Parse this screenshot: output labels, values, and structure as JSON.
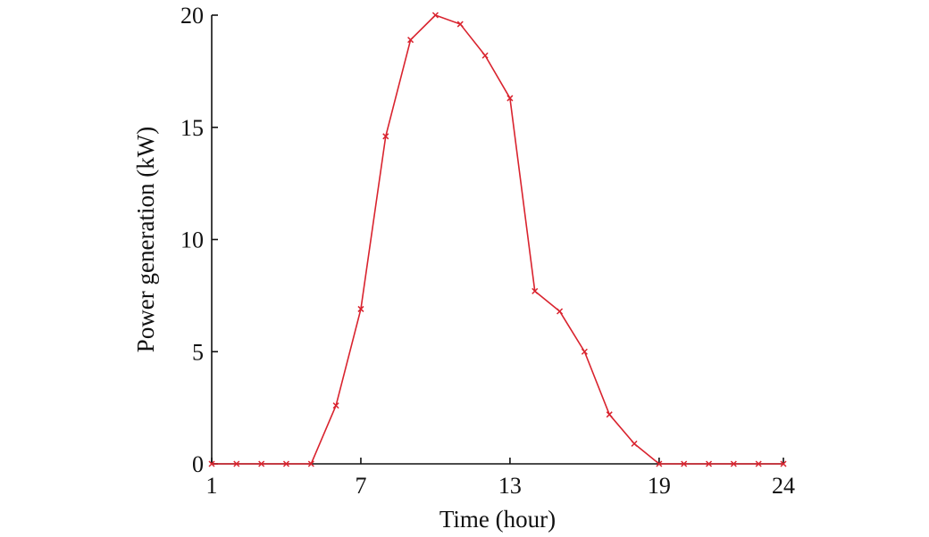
{
  "chart_data": {
    "type": "line",
    "title": "",
    "xlabel": "Time (hour)",
    "ylabel": "Power generation (kW)",
    "xlim": [
      1,
      24
    ],
    "ylim": [
      0,
      20
    ],
    "xticks": [
      1,
      7,
      13,
      19,
      24
    ],
    "yticks": [
      0,
      5,
      10,
      15,
      20
    ],
    "grid": false,
    "series": [
      {
        "color": "#d9232e",
        "marker": "x",
        "x": [
          1,
          2,
          3,
          4,
          5,
          6,
          7,
          8,
          9,
          10,
          11,
          12,
          13,
          14,
          15,
          16,
          17,
          18,
          19,
          20,
          21,
          22,
          23,
          24
        ],
        "values": [
          0,
          0,
          0,
          0,
          0,
          2.6,
          6.9,
          14.6,
          18.9,
          20.0,
          19.6,
          18.2,
          16.3,
          7.7,
          6.8,
          5.0,
          2.2,
          0.9,
          0,
          0,
          0,
          0,
          0,
          0
        ]
      }
    ]
  }
}
